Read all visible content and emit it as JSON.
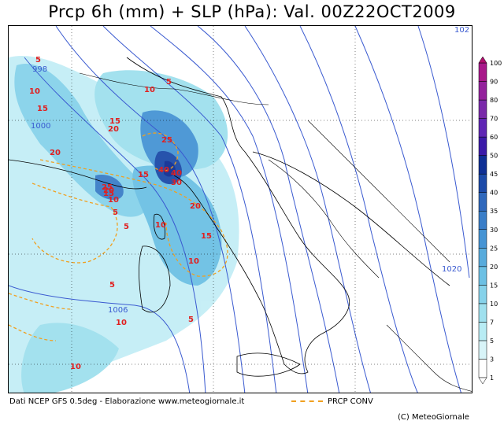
{
  "title": "Prcp 6h (mm) + SLP (hPa): Val. 00Z22OCT2009",
  "footer": {
    "source": "Dati NCEP GFS 0.5deg - Elaborazione www.meteogiornale.it",
    "conv_label": "PRCP CONV",
    "copyright": "(C) MeteoGiornale"
  },
  "legend": {
    "levels": [
      "1",
      "3",
      "5",
      "7",
      "10",
      "15",
      "20",
      "25",
      "30",
      "35",
      "40",
      "45",
      "50",
      "60",
      "70",
      "80",
      "90",
      "100"
    ],
    "colors": [
      "#ffffff",
      "#d8f4f8",
      "#b8ecf4",
      "#9fe0ee",
      "#86d2ea",
      "#6cc0e4",
      "#58abdc",
      "#4694d4",
      "#3a7ec8",
      "#2f68bc",
      "#1c4aa8",
      "#0f2f94",
      "#3b1aa8",
      "#5f26b4",
      "#7a2aaa",
      "#94229c",
      "#a8188a",
      "#b00e6e"
    ]
  },
  "isobars": [
    "998",
    "1000",
    "1006",
    "1020",
    "102"
  ],
  "precip_labels": [
    "5",
    "10",
    "15",
    "20",
    "10",
    "5",
    "15",
    "20",
    "25",
    "15",
    "25",
    "40",
    "40",
    "30",
    "20",
    "10",
    "15",
    "5",
    "10",
    "15",
    "20",
    "10",
    "5",
    "10",
    "5",
    "5",
    "10"
  ],
  "colors": {
    "conv": "#f0a020",
    "isobar": "#3a5ad0",
    "label": "#e02020",
    "coast": "#000000"
  }
}
